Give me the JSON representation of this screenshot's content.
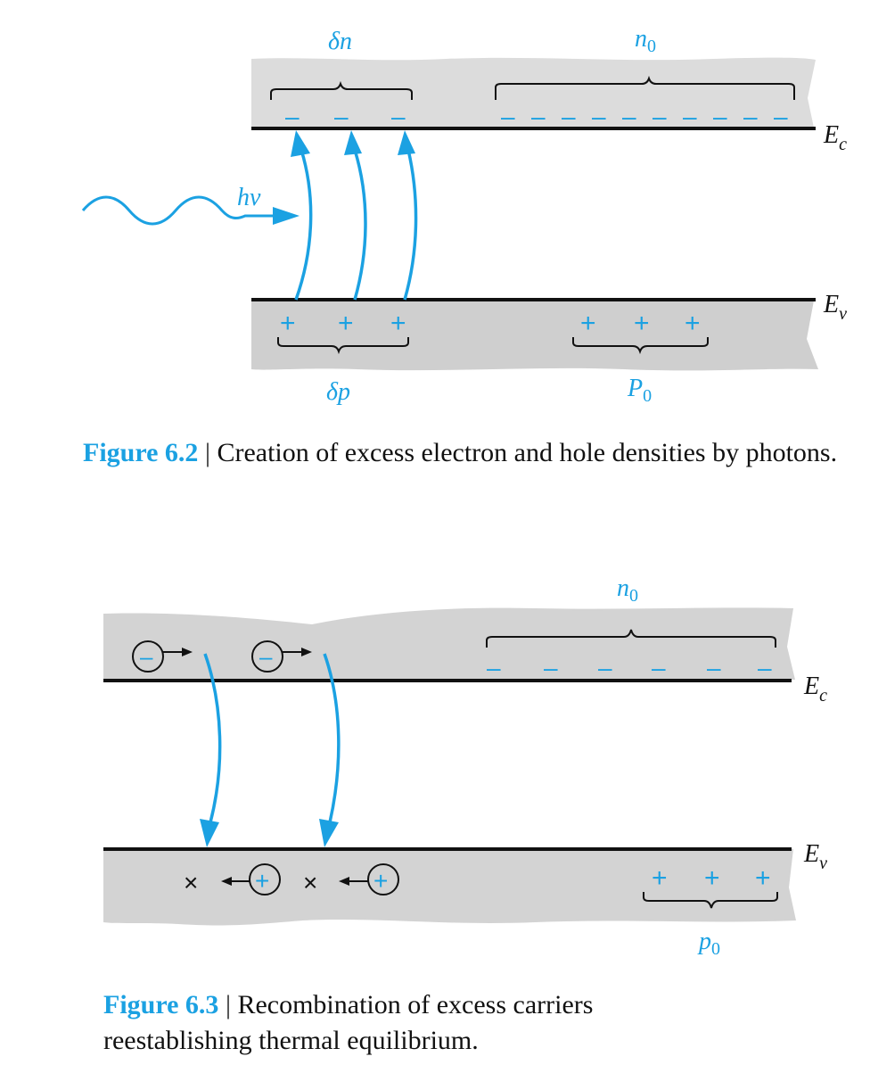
{
  "figure_6_2": {
    "label_delta_n": "δn",
    "label_n0_base": "n",
    "label_n0_sub": "0",
    "label_ec_base": "E",
    "label_ec_sub": "c",
    "label_ev_base": "E",
    "label_ev_sub": "v",
    "label_hv": "hν",
    "label_delta_p": "δp",
    "label_p0_base": "P",
    "label_p0_sub": "0",
    "electron_symbol": "–",
    "hole_symbol": "+",
    "caption_number": "Figure 6.2",
    "caption_separator": "|",
    "caption_text": "Creation of excess electron and hole densities by photons."
  },
  "figure_6_3": {
    "label_n0_base": "n",
    "label_n0_sub": "0",
    "label_ec_base": "E",
    "label_ec_sub": "c",
    "label_ev_base": "E",
    "label_ev_sub": "v",
    "label_p0_base": "p",
    "label_p0_sub": "0",
    "electron_symbol": "–",
    "hole_symbol": "+",
    "vacancy_symbol": "×",
    "caption_number": "Figure 6.3",
    "caption_separator": "|",
    "caption_text": "Recombination of excess carriers reestablishing thermal equilibrium."
  },
  "colors": {
    "accent": "#1ba1e2",
    "band_fill": "#d9d9d9",
    "band_fill_dark": "#cfcfcf",
    "line": "#111111"
  }
}
